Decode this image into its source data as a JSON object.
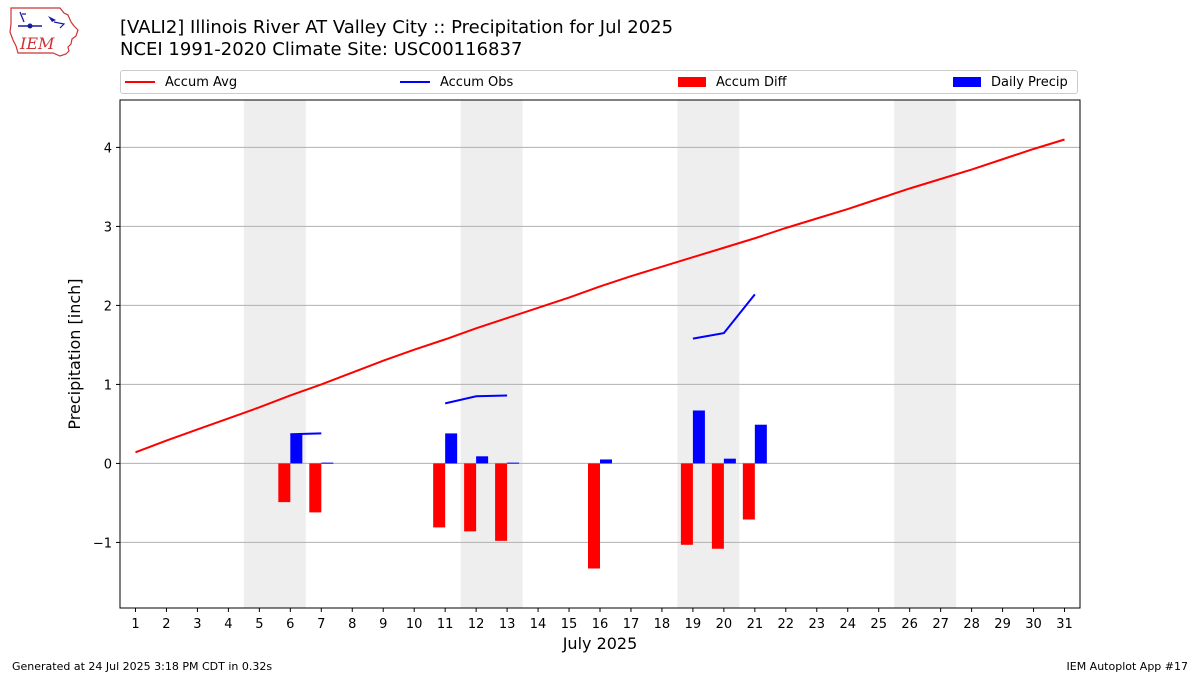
{
  "header": {
    "title_line1": "[VALI2] Illinois River  AT Valley City :: Precipitation for Jul 2025",
    "title_line2": "NCEI 1991-2020 Climate Site: USC00116837",
    "logo_text": "IEM"
  },
  "footer": {
    "generated": "Generated at 24 Jul 2025 3:18 PM CDT in 0.32s",
    "app": "IEM Autoplot App #17"
  },
  "colors": {
    "accum_avg": "#ff0000",
    "accum_obs": "#0000ff",
    "accum_diff": "#ff0000",
    "daily_precip": "#0000ff",
    "weekend_shade": "#eeeeee",
    "grid": "#b0b0b0"
  },
  "chart_data": {
    "type": "bar",
    "title": "[VALI2] Illinois River  AT Valley City :: Precipitation for Jul 2025",
    "subtitle": "NCEI 1991-2020 Climate Site: USC00116837",
    "xlabel": "July 2025",
    "ylabel": "Precipitation [inch]",
    "x": [
      1,
      2,
      3,
      4,
      5,
      6,
      7,
      8,
      9,
      10,
      11,
      12,
      13,
      14,
      15,
      16,
      17,
      18,
      19,
      20,
      21,
      22,
      23,
      24,
      25,
      26,
      27,
      28,
      29,
      30,
      31
    ],
    "xlim": [
      0.5,
      31.5
    ],
    "ylim": [
      -1.83,
      4.6
    ],
    "yticks": [
      -1,
      0,
      1,
      2,
      3,
      4
    ],
    "yticklabels": [
      "−1",
      "0",
      "1",
      "2",
      "3",
      "4"
    ],
    "grid": "horizontal",
    "legend_position": "top",
    "weekend_ranges": [
      [
        5,
        6
      ],
      [
        12,
        13
      ],
      [
        19,
        20
      ],
      [
        26,
        27
      ]
    ],
    "series": [
      {
        "name": "Accum Avg",
        "kind": "line",
        "x": [
          1,
          2,
          3,
          4,
          5,
          6,
          7,
          8,
          9,
          10,
          11,
          12,
          13,
          14,
          15,
          16,
          17,
          18,
          19,
          20,
          21,
          22,
          23,
          24,
          25,
          26,
          27,
          28,
          29,
          30,
          31
        ],
        "values": [
          0.14,
          0.29,
          0.43,
          0.57,
          0.71,
          0.86,
          1.0,
          1.15,
          1.3,
          1.44,
          1.57,
          1.71,
          1.84,
          1.97,
          2.1,
          2.24,
          2.37,
          2.49,
          2.61,
          2.73,
          2.85,
          2.98,
          3.1,
          3.22,
          3.35,
          3.48,
          3.6,
          3.72,
          3.85,
          3.98,
          4.1
        ]
      },
      {
        "name": "Accum Obs",
        "kind": "line",
        "segments": [
          {
            "x": [
              6,
              7
            ],
            "values": [
              0.37,
              0.38
            ]
          },
          {
            "x": [
              11,
              12,
              13
            ],
            "values": [
              0.76,
              0.85,
              0.86
            ]
          },
          {
            "x": [
              19,
              20,
              21
            ],
            "values": [
              1.58,
              1.65,
              2.14
            ]
          }
        ]
      },
      {
        "name": "Accum Diff",
        "kind": "bar",
        "x": [
          6,
          7,
          11,
          12,
          13,
          16,
          19,
          20,
          21
        ],
        "values": [
          -0.49,
          -0.62,
          -0.81,
          -0.86,
          -0.98,
          -1.33,
          -1.03,
          -1.08,
          -0.71
        ]
      },
      {
        "name": "Daily Precip",
        "kind": "bar",
        "x": [
          6,
          7,
          11,
          12,
          13,
          16,
          19,
          20,
          21
        ],
        "values": [
          0.37,
          0.01,
          0.38,
          0.09,
          0.01,
          0.05,
          0.67,
          0.06,
          0.49
        ]
      }
    ]
  }
}
